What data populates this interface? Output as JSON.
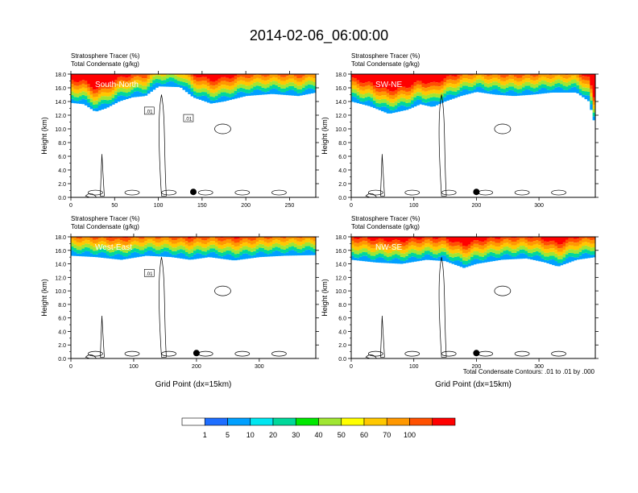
{
  "figure": {
    "title": "2014-02-06_06:00:00",
    "footnote": "Total Condensate Contours: .01 to .01 by .000"
  },
  "colorbar": {
    "colors": [
      "#ffffff",
      "#1e6eff",
      "#00a0ff",
      "#00e6f0",
      "#00d89a",
      "#00e800",
      "#a0e632",
      "#ffff00",
      "#ffc800",
      "#ff9800",
      "#ff5000",
      "#ff0000"
    ],
    "labels": [
      "1",
      "5",
      "10",
      "20",
      "30",
      "40",
      "50",
      "60",
      "70",
      "100"
    ]
  },
  "chart_data": [
    {
      "type": "heatmap",
      "label": "South-North",
      "titles": [
        "Stratosphere Tracer   (%)",
        "Total Condensate   (g/kg)"
      ],
      "xlabel": "",
      "ylabel": "Height (km)",
      "xlim": [
        0,
        280
      ],
      "ylim": [
        0,
        18
      ],
      "xticks": [
        0,
        50,
        100,
        150,
        200,
        250
      ],
      "yticks": [
        "0.0",
        "2.0",
        "4.0",
        "6.0",
        "8.0",
        "10.0",
        "12.0",
        "14.0",
        "16.0",
        "18.0"
      ],
      "contour_labels": [
        ".01",
        ".01"
      ],
      "marker_x": 140,
      "tropopause_km": [
        [
          0,
          13.8
        ],
        [
          15,
          13.6
        ],
        [
          28,
          12.5
        ],
        [
          40,
          13.0
        ],
        [
          55,
          14.0
        ],
        [
          70,
          14.6
        ],
        [
          85,
          14.8
        ],
        [
          100,
          16.2
        ],
        [
          125,
          16.1
        ],
        [
          140,
          14.6
        ],
        [
          160,
          13.7
        ],
        [
          175,
          14.0
        ],
        [
          200,
          14.8
        ],
        [
          230,
          15.1
        ],
        [
          260,
          14.8
        ],
        [
          280,
          15.3
        ]
      ]
    },
    {
      "type": "heatmap",
      "label": "SW-NE",
      "titles": [
        "Stratosphere Tracer   (%)",
        "Total Condensate   (g/kg)"
      ],
      "xlabel": "",
      "ylabel": "Height (km)",
      "xlim": [
        0,
        390
      ],
      "ylim": [
        0,
        18
      ],
      "xticks": [
        0,
        100,
        200,
        300
      ],
      "yticks": [
        "0.0",
        "2.0",
        "4.0",
        "6.0",
        "8.0",
        "10.0",
        "12.0",
        "14.0",
        "16.0",
        "18.0"
      ],
      "contour_labels": [],
      "marker_x": 200,
      "tropopause_km": [
        [
          0,
          14.0
        ],
        [
          30,
          13.3
        ],
        [
          60,
          12.2
        ],
        [
          90,
          12.8
        ],
        [
          110,
          13.6
        ],
        [
          130,
          13.2
        ],
        [
          150,
          14.0
        ],
        [
          175,
          14.8
        ],
        [
          200,
          15.4
        ],
        [
          230,
          15.0
        ],
        [
          260,
          14.8
        ],
        [
          290,
          15.0
        ],
        [
          320,
          15.3
        ],
        [
          360,
          15.3
        ],
        [
          380,
          14.0
        ],
        [
          390,
          10.5
        ]
      ]
    },
    {
      "type": "heatmap",
      "label": "West-East",
      "titles": [
        "Stratosphere Tracer   (%)",
        "Total Condensate   (g/kg)"
      ],
      "xlabel": "Grid Point (dx=15km)",
      "ylabel": "Height (km)",
      "xlim": [
        0,
        390
      ],
      "ylim": [
        0,
        18
      ],
      "xticks": [
        0,
        100,
        200,
        300
      ],
      "yticks": [
        "0.0",
        "2.0",
        "4.0",
        "6.0",
        "8.0",
        "10.0",
        "12.0",
        "14.0",
        "16.0",
        "18.0"
      ],
      "contour_labels": [
        ".01"
      ],
      "marker_x": 200,
      "tropopause_km": [
        [
          0,
          15.2
        ],
        [
          40,
          15.0
        ],
        [
          80,
          14.6
        ],
        [
          120,
          15.2
        ],
        [
          160,
          15.0
        ],
        [
          190,
          14.6
        ],
        [
          220,
          15.0
        ],
        [
          260,
          14.5
        ],
        [
          300,
          15.0
        ],
        [
          340,
          15.2
        ],
        [
          390,
          15.3
        ]
      ]
    },
    {
      "type": "heatmap",
      "label": "NW-SE",
      "titles": [
        "Stratosphere Tracer   (%)",
        "Total Condensate   (g/kg)"
      ],
      "xlabel": "Grid Point (dx=15km)",
      "ylabel": "Height (km)",
      "xlim": [
        0,
        390
      ],
      "ylim": [
        0,
        18
      ],
      "xticks": [
        0,
        100,
        200,
        300
      ],
      "yticks": [
        "0.0",
        "2.0",
        "4.0",
        "6.0",
        "8.0",
        "10.0",
        "12.0",
        "14.0",
        "16.0",
        "18.0"
      ],
      "contour_labels": [],
      "marker_x": 200,
      "tropopause_km": [
        [
          0,
          14.6
        ],
        [
          40,
          14.2
        ],
        [
          80,
          14.0
        ],
        [
          120,
          14.6
        ],
        [
          150,
          14.4
        ],
        [
          180,
          13.4
        ],
        [
          200,
          14.0
        ],
        [
          240,
          14.6
        ],
        [
          280,
          14.8
        ],
        [
          310,
          14.2
        ],
        [
          330,
          13.6
        ],
        [
          360,
          14.6
        ],
        [
          390,
          15.0
        ]
      ]
    }
  ]
}
